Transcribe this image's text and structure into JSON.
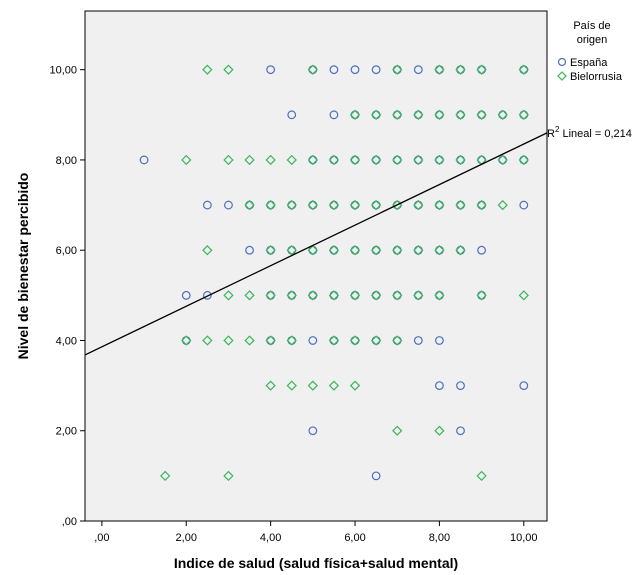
{
  "colors": {
    "plot_background": "#f0f0f0",
    "espana": "#4a6ec0",
    "bielorrusia": "#3ab55a",
    "fit_line": "#000000"
  },
  "chart_data": {
    "type": "scatter",
    "xlabel": "Indice de salud (salud física+salud mental)",
    "ylabel": "Nivel de bienestar percibido",
    "xlim": [
      -0.4,
      10.55
    ],
    "ylim": [
      0,
      11.3
    ],
    "x_ticks": [
      0,
      2,
      4,
      6,
      8,
      10
    ],
    "x_tick_labels": [
      ",00",
      "2,00",
      "4,00",
      "6,00",
      "8,00",
      "10,00"
    ],
    "y_ticks": [
      0,
      2,
      4,
      6,
      8,
      10
    ],
    "y_tick_labels": [
      ",00",
      "2,00",
      "4,00",
      "6,00",
      "8,00",
      "10,00"
    ],
    "grid": false,
    "legend": {
      "title": "País de origen",
      "title_lines": [
        "País de",
        "origen"
      ],
      "placement": "right",
      "entries": [
        {
          "label": "España",
          "marker": "circle"
        },
        {
          "label": "Bielorrusia",
          "marker": "diamond"
        }
      ]
    },
    "fit_line": {
      "x": [
        -0.4,
        10.55
      ],
      "y": [
        3.68,
        8.6
      ],
      "label_prefix": "R",
      "label_sup": "2",
      "label_suffix": " Lineal = 0,214"
    },
    "series": [
      {
        "name": "España",
        "marker": "circle",
        "points": [
          [
            1,
            8
          ],
          [
            2,
            5
          ],
          [
            2,
            4
          ],
          [
            2.5,
            7
          ],
          [
            2.5,
            5
          ],
          [
            3,
            7
          ],
          [
            3.5,
            7
          ],
          [
            3.5,
            6
          ],
          [
            4,
            10
          ],
          [
            4,
            7
          ],
          [
            4,
            6
          ],
          [
            4,
            5
          ],
          [
            4,
            4
          ],
          [
            4.5,
            9
          ],
          [
            4.5,
            7
          ],
          [
            4.5,
            6
          ],
          [
            4.5,
            5
          ],
          [
            4.5,
            4
          ],
          [
            5,
            10
          ],
          [
            5,
            8
          ],
          [
            5,
            7
          ],
          [
            5,
            6
          ],
          [
            5,
            5
          ],
          [
            5,
            4
          ],
          [
            5,
            2
          ],
          [
            5.5,
            10
          ],
          [
            5.5,
            9
          ],
          [
            5.5,
            8
          ],
          [
            5.5,
            7
          ],
          [
            5.5,
            6
          ],
          [
            5.5,
            5
          ],
          [
            5.5,
            4
          ],
          [
            6,
            10
          ],
          [
            6,
            9
          ],
          [
            6,
            8
          ],
          [
            6,
            7
          ],
          [
            6,
            6
          ],
          [
            6,
            5
          ],
          [
            6,
            4
          ],
          [
            6.5,
            10
          ],
          [
            6.5,
            9
          ],
          [
            6.5,
            8
          ],
          [
            6.5,
            7
          ],
          [
            6.5,
            6
          ],
          [
            6.5,
            5
          ],
          [
            6.5,
            4
          ],
          [
            6.5,
            1
          ],
          [
            7,
            10
          ],
          [
            7,
            9
          ],
          [
            7,
            8
          ],
          [
            7,
            7
          ],
          [
            7,
            6
          ],
          [
            7,
            5
          ],
          [
            7,
            4
          ],
          [
            7.5,
            10
          ],
          [
            7.5,
            9
          ],
          [
            7.5,
            8
          ],
          [
            7.5,
            7
          ],
          [
            7.5,
            6
          ],
          [
            7.5,
            5
          ],
          [
            7.5,
            4
          ],
          [
            8,
            10
          ],
          [
            8,
            9
          ],
          [
            8,
            8
          ],
          [
            8,
            7
          ],
          [
            8,
            6
          ],
          [
            8,
            5
          ],
          [
            8,
            4
          ],
          [
            8,
            3
          ],
          [
            8.5,
            10
          ],
          [
            8.5,
            9
          ],
          [
            8.5,
            8
          ],
          [
            8.5,
            7
          ],
          [
            8.5,
            6
          ],
          [
            8.5,
            3
          ],
          [
            8.5,
            2
          ],
          [
            9,
            10
          ],
          [
            9,
            9
          ],
          [
            9,
            8
          ],
          [
            9,
            7
          ],
          [
            9,
            6
          ],
          [
            9,
            5
          ],
          [
            9.5,
            9
          ],
          [
            9.5,
            8
          ],
          [
            10,
            10
          ],
          [
            10,
            9
          ],
          [
            10,
            8
          ],
          [
            10,
            7
          ],
          [
            10,
            3
          ]
        ]
      },
      {
        "name": "Bielorrusia",
        "marker": "diamond",
        "points": [
          [
            1.5,
            1
          ],
          [
            2,
            8
          ],
          [
            2,
            4
          ],
          [
            2.5,
            10
          ],
          [
            2.5,
            6
          ],
          [
            2.5,
            4
          ],
          [
            3,
            10
          ],
          [
            3,
            8
          ],
          [
            3,
            5
          ],
          [
            3,
            4
          ],
          [
            3,
            1
          ],
          [
            3.5,
            8
          ],
          [
            3.5,
            7
          ],
          [
            3.5,
            5
          ],
          [
            3.5,
            4
          ],
          [
            4,
            8
          ],
          [
            4,
            7
          ],
          [
            4,
            6
          ],
          [
            4,
            5
          ],
          [
            4,
            4
          ],
          [
            4,
            3
          ],
          [
            4.5,
            8
          ],
          [
            4.5,
            7
          ],
          [
            4.5,
            6
          ],
          [
            4.5,
            5
          ],
          [
            4.5,
            4
          ],
          [
            4.5,
            3
          ],
          [
            5,
            10
          ],
          [
            5,
            8
          ],
          [
            5,
            7
          ],
          [
            5,
            6
          ],
          [
            5,
            5
          ],
          [
            5,
            3
          ],
          [
            5.5,
            8
          ],
          [
            5.5,
            7
          ],
          [
            5.5,
            6
          ],
          [
            5.5,
            5
          ],
          [
            5.5,
            4
          ],
          [
            5.5,
            3
          ],
          [
            6,
            9
          ],
          [
            6,
            8
          ],
          [
            6,
            7
          ],
          [
            6,
            6
          ],
          [
            6,
            5
          ],
          [
            6,
            4
          ],
          [
            6,
            3
          ],
          [
            6.5,
            9
          ],
          [
            6.5,
            8
          ],
          [
            6.5,
            7
          ],
          [
            6.5,
            6
          ],
          [
            6.5,
            5
          ],
          [
            6.5,
            4
          ],
          [
            7,
            10
          ],
          [
            7,
            9
          ],
          [
            7,
            8
          ],
          [
            7,
            7
          ],
          [
            7,
            6
          ],
          [
            7,
            5
          ],
          [
            7,
            4
          ],
          [
            7,
            2
          ],
          [
            7.5,
            9
          ],
          [
            7.5,
            8
          ],
          [
            7.5,
            7
          ],
          [
            7.5,
            6
          ],
          [
            7.5,
            5
          ],
          [
            8,
            10
          ],
          [
            8,
            9
          ],
          [
            8,
            8
          ],
          [
            8,
            7
          ],
          [
            8,
            6
          ],
          [
            8,
            5
          ],
          [
            8,
            2
          ],
          [
            8.5,
            10
          ],
          [
            8.5,
            9
          ],
          [
            8.5,
            8
          ],
          [
            8.5,
            7
          ],
          [
            8.5,
            6
          ],
          [
            9,
            10
          ],
          [
            9,
            9
          ],
          [
            9,
            8
          ],
          [
            9,
            7
          ],
          [
            9,
            5
          ],
          [
            9,
            1
          ],
          [
            9.5,
            9
          ],
          [
            9.5,
            8
          ],
          [
            9.5,
            7
          ],
          [
            10,
            10
          ],
          [
            10,
            9
          ],
          [
            10,
            8
          ],
          [
            10,
            5
          ]
        ]
      }
    ]
  }
}
